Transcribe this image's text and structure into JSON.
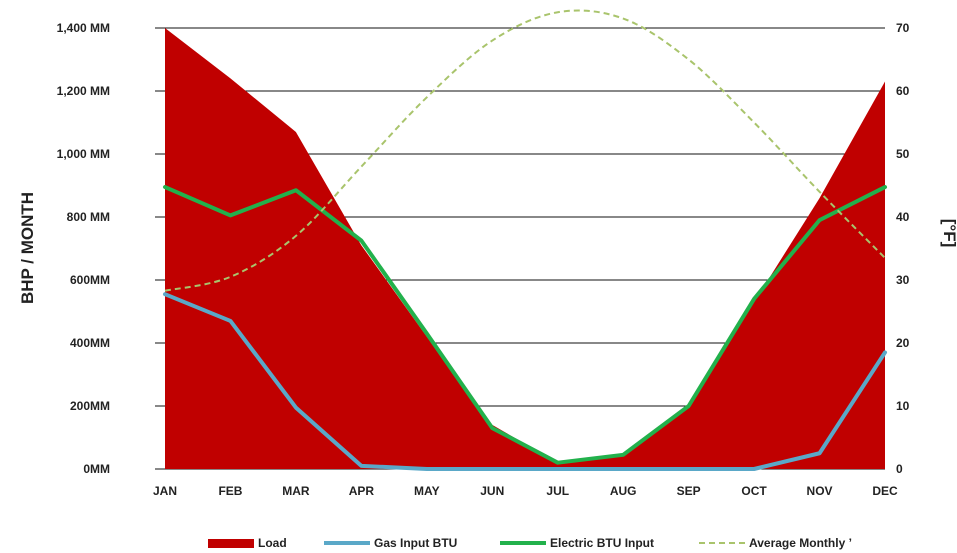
{
  "chart_data": {
    "type": "area",
    "title": "",
    "categories": [
      "JAN",
      "FEB",
      "MAR",
      "APR",
      "MAY",
      "JUN",
      "JUL",
      "AUG",
      "SEP",
      "OCT",
      "NOV",
      "DEC"
    ],
    "y_left": {
      "label": "BHP / MONTH",
      "range": [
        0,
        1400
      ],
      "ticks": [
        0,
        200,
        400,
        600,
        800,
        1000,
        1200,
        1400
      ],
      "tick_labels": [
        "0MM",
        "200MM",
        "400MM",
        "600MM",
        "800 MM",
        "1,000 MM",
        "1,200 MM",
        "1,400 MM"
      ]
    },
    "y_right": {
      "label": "[°F]",
      "range": [
        0,
        70
      ],
      "ticks": [
        0,
        10,
        20,
        30,
        40,
        50,
        60,
        70
      ],
      "tick_labels": [
        "0",
        "10",
        "20",
        "30",
        "40",
        "50",
        "60",
        "70"
      ]
    },
    "grid": "horizontal",
    "legend_position": "bottom",
    "series": [
      {
        "name": "Load",
        "kind": "area",
        "axis": "left",
        "color": "#c00000",
        "values": [
          1400,
          1240,
          1070,
          710,
          420,
          140,
          20,
          40,
          200,
          530,
          860,
          1230
        ]
      },
      {
        "name": "Gas Input BTU",
        "kind": "line",
        "axis": "left",
        "color": "#5aa8c8",
        "values": [
          555,
          470,
          195,
          10,
          0,
          0,
          0,
          0,
          0,
          0,
          50,
          370
        ]
      },
      {
        "name": "Electric BTU Input",
        "kind": "line",
        "axis": "left",
        "color": "#22b14c",
        "values": [
          895,
          805,
          885,
          725,
          430,
          130,
          20,
          45,
          200,
          540,
          790,
          895
        ]
      },
      {
        "name": "Average Monthly ’",
        "kind": "dashed-line",
        "axis": "right",
        "color": "#a9c46c",
        "values": [
          28.3,
          30.5,
          37,
          48,
          59,
          68,
          72.5,
          71.5,
          65,
          55,
          44,
          33.5
        ]
      }
    ]
  }
}
